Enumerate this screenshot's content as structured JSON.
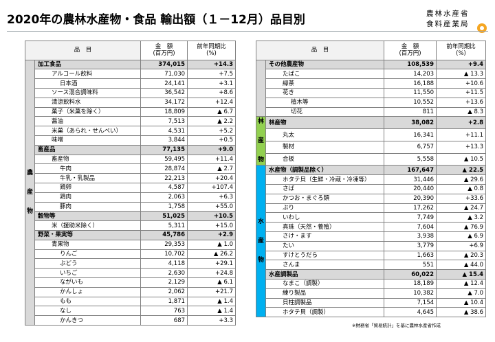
{
  "header": {
    "title": "2020年の農林水産物・食品 輸出額（１－12月）品目別",
    "logo_line1": "農林水産省",
    "logo_line2": "食料産業局"
  },
  "columns": {
    "item": "品　目",
    "amount_line1": "金　額",
    "amount_line2": "(百万円)",
    "ratio_line1": "前年同期比",
    "ratio_line2": "(%)"
  },
  "left_table": {
    "side_label": "農産物",
    "rows": [
      {
        "level": 0,
        "cat": true,
        "name": "加工食品",
        "amount": "374,015",
        "ratio": "+14.3"
      },
      {
        "level": 1,
        "name": "アルコール飲料",
        "amount": "71,030",
        "ratio": "+7.5"
      },
      {
        "level": 2,
        "name": "日本酒",
        "amount": "24,141",
        "ratio": "+3.1"
      },
      {
        "level": 1,
        "name": "ソース混合調味料",
        "amount": "36,542",
        "ratio": "+8.6"
      },
      {
        "level": 1,
        "name": "清涼飲料水",
        "amount": "34,172",
        "ratio": "+12.4"
      },
      {
        "level": 1,
        "name": "菓子（米菓を除く）",
        "amount": "18,809",
        "ratio": "▲ 6.7"
      },
      {
        "level": 1,
        "name": "醤油",
        "amount": "7,513",
        "ratio": "▲ 2.2"
      },
      {
        "level": 1,
        "name": "米菓（あられ・せんべい）",
        "amount": "4,531",
        "ratio": "+5.2"
      },
      {
        "level": 1,
        "name": "味噌",
        "amount": "3,844",
        "ratio": "+0.5"
      },
      {
        "level": 0,
        "cat": true,
        "name": "畜産品",
        "amount": "77,135",
        "ratio": "+9.0"
      },
      {
        "level": 1,
        "name": "畜産物",
        "amount": "59,495",
        "ratio": "+11.4"
      },
      {
        "level": 2,
        "name": "牛肉",
        "amount": "28,874",
        "ratio": "▲ 2.7"
      },
      {
        "level": 2,
        "name": "牛乳・乳製品",
        "amount": "22,213",
        "ratio": "+20.4"
      },
      {
        "level": 2,
        "name": "鶏卵",
        "amount": "4,587",
        "ratio": "+107.4"
      },
      {
        "level": 2,
        "name": "鶏肉",
        "amount": "2,063",
        "ratio": "+6.3"
      },
      {
        "level": 2,
        "name": "豚肉",
        "amount": "1,758",
        "ratio": "+55.0"
      },
      {
        "level": 0,
        "cat": true,
        "name": "穀物等",
        "amount": "51,025",
        "ratio": "+10.5"
      },
      {
        "level": 1,
        "name": "米（援助米除く）",
        "amount": "5,311",
        "ratio": "+15.0"
      },
      {
        "level": 0,
        "cat": true,
        "name": "野菜・果実等",
        "amount": "45,786",
        "ratio": "+2.9"
      },
      {
        "level": 1,
        "name": "青果物",
        "amount": "29,353",
        "ratio": "▲ 1.0"
      },
      {
        "level": 2,
        "name": "りんご",
        "amount": "10,702",
        "ratio": "▲ 26.2"
      },
      {
        "level": 2,
        "name": "ぶどう",
        "amount": "4,118",
        "ratio": "+29.1"
      },
      {
        "level": 2,
        "name": "いちご",
        "amount": "2,630",
        "ratio": "+24.8"
      },
      {
        "level": 2,
        "name": "ながいも",
        "amount": "2,129",
        "ratio": "▲ 6.1"
      },
      {
        "level": 2,
        "name": "かんしょ",
        "amount": "2,062",
        "ratio": "+21.7"
      },
      {
        "level": 2,
        "name": "もも",
        "amount": "1,871",
        "ratio": "▲ 1.4"
      },
      {
        "level": 2,
        "name": "なし",
        "amount": "763",
        "ratio": "▲ 1.4"
      },
      {
        "level": 2,
        "name": "かんきつ",
        "amount": "687",
        "ratio": "+3.3"
      }
    ]
  },
  "right_table": {
    "side_forest": "林産物",
    "side_marine": "水産物",
    "rows": [
      {
        "level": 0,
        "cat": true,
        "name": "その他農産物",
        "amount": "108,539",
        "ratio": "+9.4"
      },
      {
        "level": 1,
        "name": "たばこ",
        "amount": "14,203",
        "ratio": "▲ 13.3"
      },
      {
        "level": 1,
        "name": "緑茶",
        "amount": "16,188",
        "ratio": "+10.6"
      },
      {
        "level": 1,
        "name": "花き",
        "amount": "11,550",
        "ratio": "+11.5"
      },
      {
        "level": 2,
        "name": "植木等",
        "amount": "10,552",
        "ratio": "+13.6"
      },
      {
        "level": 2,
        "name": "切花",
        "amount": "811",
        "ratio": "▲ 8.3"
      },
      {
        "level": 0,
        "cat": true,
        "name": "林産物",
        "amount": "38,082",
        "ratio": "+2.8"
      },
      {
        "level": 1,
        "name": "丸太",
        "amount": "16,341",
        "ratio": "+11.1"
      },
      {
        "level": 1,
        "name": "製材",
        "amount": "6,757",
        "ratio": "+13.3"
      },
      {
        "level": 1,
        "name": "合板",
        "amount": "5,558",
        "ratio": "▲ 10.5"
      },
      {
        "level": 0,
        "cat": true,
        "name": "水産物（調製品除く）",
        "amount": "167,647",
        "ratio": "▲ 22.5"
      },
      {
        "level": 1,
        "name": "ホタテ貝（生鮮・冷蔵・冷凍等）",
        "amount": "31,446",
        "ratio": "▲ 29.6"
      },
      {
        "level": 1,
        "name": "さば",
        "amount": "20,440",
        "ratio": "▲ 0.8"
      },
      {
        "level": 1,
        "name": "かつお・まぐろ類",
        "amount": "20,390",
        "ratio": "+33.6"
      },
      {
        "level": 1,
        "name": "ぶり",
        "amount": "17,262",
        "ratio": "▲ 24.7"
      },
      {
        "level": 1,
        "name": "いわし",
        "amount": "7,749",
        "ratio": "▲ 3.2"
      },
      {
        "level": 1,
        "name": "真珠（天然・養殖）",
        "amount": "7,604",
        "ratio": "▲ 76.9"
      },
      {
        "level": 1,
        "name": "さけ・ます",
        "amount": "3,938",
        "ratio": "▲ 6.9"
      },
      {
        "level": 1,
        "name": "たい",
        "amount": "3,779",
        "ratio": "+6.9"
      },
      {
        "level": 1,
        "name": "すけとうだら",
        "amount": "1,663",
        "ratio": "▲ 20.3"
      },
      {
        "level": 1,
        "name": "さんま",
        "amount": "551",
        "ratio": "▲ 44.0"
      },
      {
        "level": 0,
        "cat": true,
        "name": "水産調製品",
        "amount": "60,022",
        "ratio": "▲ 15.4"
      },
      {
        "level": 1,
        "name": "なまこ（調製）",
        "amount": "18,189",
        "ratio": "▲ 12.4"
      },
      {
        "level": 1,
        "name": "練り製品",
        "amount": "10,382",
        "ratio": "▲ 7.0"
      },
      {
        "level": 1,
        "name": "貝柱調製品",
        "amount": "7,154",
        "ratio": "▲ 10.4"
      },
      {
        "level": 1,
        "name": "ホタテ貝（調製）",
        "amount": "4,645",
        "ratio": "▲ 38.6"
      }
    ]
  },
  "footer": {
    "note": "※財務省「貿易統計」を基に農林水産省作成"
  },
  "colors": {
    "agri_side": "#ffc000",
    "forest_side": "#92d050",
    "marine_side": "#00b0f0",
    "category_row": "#d9d9d9"
  }
}
